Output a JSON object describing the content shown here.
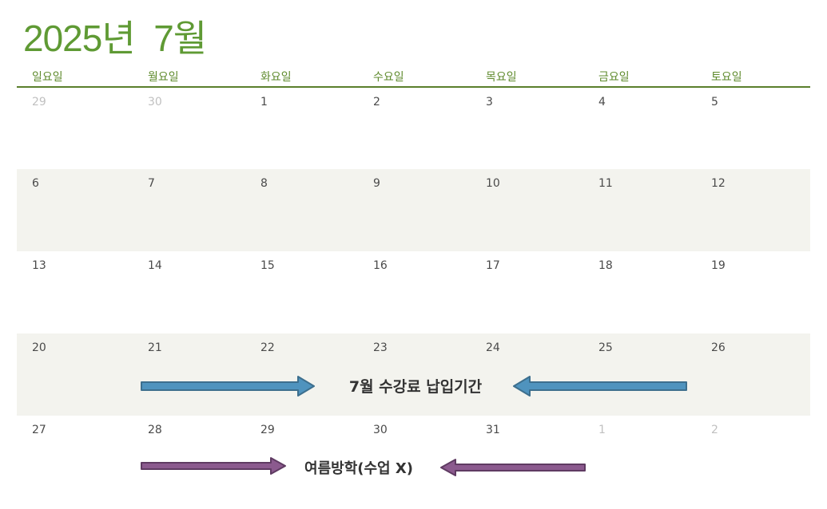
{
  "calendar": {
    "title": "2025년  7월",
    "weekdays": [
      "일요일",
      "월요일",
      "화요일",
      "수요일",
      "목요일",
      "금요일",
      "토요일"
    ],
    "weeks": [
      {
        "shaded": false,
        "days": [
          {
            "n": "29",
            "muted": true
          },
          {
            "n": "30",
            "muted": true
          },
          {
            "n": "1"
          },
          {
            "n": "2"
          },
          {
            "n": "3"
          },
          {
            "n": "4"
          },
          {
            "n": "5"
          }
        ]
      },
      {
        "shaded": true,
        "days": [
          {
            "n": "6"
          },
          {
            "n": "7"
          },
          {
            "n": "8"
          },
          {
            "n": "9"
          },
          {
            "n": "10"
          },
          {
            "n": "11"
          },
          {
            "n": "12"
          }
        ]
      },
      {
        "shaded": false,
        "days": [
          {
            "n": "13"
          },
          {
            "n": "14"
          },
          {
            "n": "15"
          },
          {
            "n": "16"
          },
          {
            "n": "17"
          },
          {
            "n": "18"
          },
          {
            "n": "19"
          }
        ]
      },
      {
        "shaded": true,
        "days": [
          {
            "n": "20"
          },
          {
            "n": "21"
          },
          {
            "n": "22"
          },
          {
            "n": "23"
          },
          {
            "n": "24"
          },
          {
            "n": "25"
          },
          {
            "n": "26"
          }
        ]
      },
      {
        "shaded": false,
        "days": [
          {
            "n": "27"
          },
          {
            "n": "28"
          },
          {
            "n": "29"
          },
          {
            "n": "30"
          },
          {
            "n": "31"
          },
          {
            "n": "1",
            "muted": true
          },
          {
            "n": "2",
            "muted": true
          }
        ]
      }
    ]
  },
  "events": [
    {
      "label": "7월 수강료 납입기간",
      "color": "#4f93be",
      "stroke": "#3d6f8e"
    },
    {
      "label": "여름방학(수업 X)",
      "color": "#8b5a8e",
      "stroke": "#5f3b62"
    }
  ]
}
